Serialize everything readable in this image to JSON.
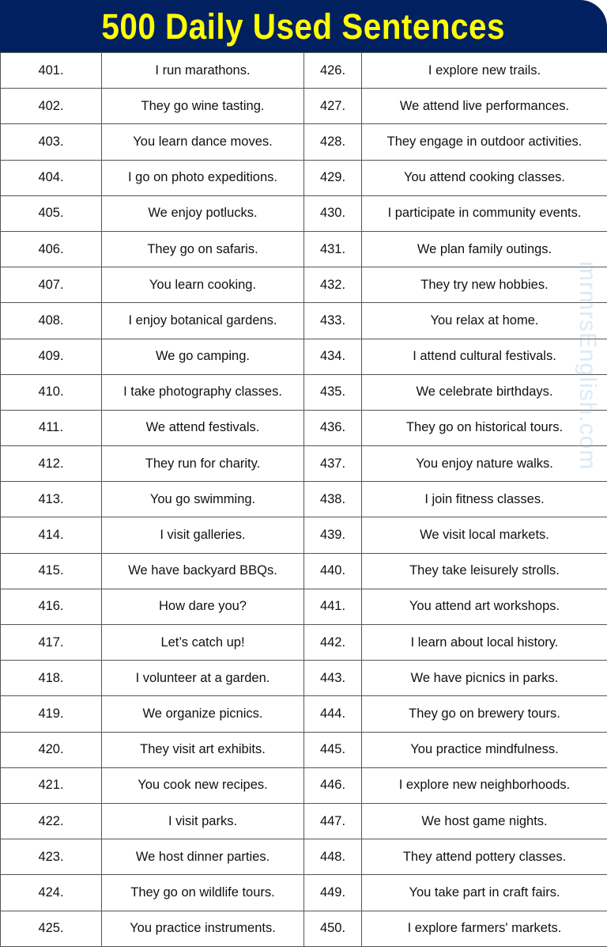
{
  "header": {
    "title": "500 Daily Used Sentences",
    "bg_color": "#002060",
    "title_color": "#FFFF00"
  },
  "watermark": "mrmrsEnglish.com",
  "rows": [
    {
      "n1": "401.",
      "s1": "I run marathons.",
      "n2": "426.",
      "s2": "I explore new trails."
    },
    {
      "n1": "402.",
      "s1": "They go wine tasting.",
      "n2": "427.",
      "s2": "We attend live performances."
    },
    {
      "n1": "403.",
      "s1": "You learn dance moves.",
      "n2": "428.",
      "s2": "They engage in outdoor activities."
    },
    {
      "n1": "404.",
      "s1": "I go on photo expeditions.",
      "n2": "429.",
      "s2": "You attend cooking classes."
    },
    {
      "n1": "405.",
      "s1": "We enjoy potlucks.",
      "n2": "430.",
      "s2": "I participate in community events."
    },
    {
      "n1": "406.",
      "s1": "They go on safaris.",
      "n2": "431.",
      "s2": "We plan family outings."
    },
    {
      "n1": "407.",
      "s1": "You learn cooking.",
      "n2": "432.",
      "s2": "They try new hobbies."
    },
    {
      "n1": "408.",
      "s1": "I enjoy botanical gardens.",
      "n2": "433.",
      "s2": "You relax at home."
    },
    {
      "n1": "409.",
      "s1": "We go camping.",
      "n2": "434.",
      "s2": "I attend cultural festivals."
    },
    {
      "n1": "410.",
      "s1": "I take photography classes.",
      "n2": "435.",
      "s2": "We celebrate birthdays."
    },
    {
      "n1": "411.",
      "s1": "We attend festivals.",
      "n2": "436.",
      "s2": "They go on historical tours."
    },
    {
      "n1": "412.",
      "s1": "They run for charity.",
      "n2": "437.",
      "s2": "You enjoy nature walks."
    },
    {
      "n1": "413.",
      "s1": "You go swimming.",
      "n2": "438.",
      "s2": "I join fitness classes."
    },
    {
      "n1": "414.",
      "s1": "I visit galleries.",
      "n2": "439.",
      "s2": "We visit local markets."
    },
    {
      "n1": "415.",
      "s1": "We have backyard BBQs.",
      "n2": "440.",
      "s2": "They take leisurely strolls."
    },
    {
      "n1": "416.",
      "s1": "How dare you?",
      "n2": "441.",
      "s2": "You attend art workshops."
    },
    {
      "n1": "417.",
      "s1": "Let’s catch up!",
      "n2": "442.",
      "s2": "I learn about local history."
    },
    {
      "n1": "418.",
      "s1": "I volunteer at a garden.",
      "n2": "443.",
      "s2": "We have picnics in parks."
    },
    {
      "n1": "419.",
      "s1": "We organize picnics.",
      "n2": "444.",
      "s2": "They go on brewery tours."
    },
    {
      "n1": "420.",
      "s1": "They visit art exhibits.",
      "n2": "445.",
      "s2": "You practice mindfulness."
    },
    {
      "n1": "421.",
      "s1": "You cook new recipes.",
      "n2": "446.",
      "s2": "I explore new neighborhoods."
    },
    {
      "n1": "422.",
      "s1": "I visit parks.",
      "n2": "447.",
      "s2": "We host game nights."
    },
    {
      "n1": "423.",
      "s1": "We host dinner parties.",
      "n2": "448.",
      "s2": "They attend pottery classes."
    },
    {
      "n1": "424.",
      "s1": "They go on wildlife tours.",
      "n2": "449.",
      "s2": "You take part in craft fairs."
    },
    {
      "n1": "425.",
      "s1": "You practice instruments.",
      "n2": "450.",
      "s2": "I explore farmers' markets."
    }
  ]
}
